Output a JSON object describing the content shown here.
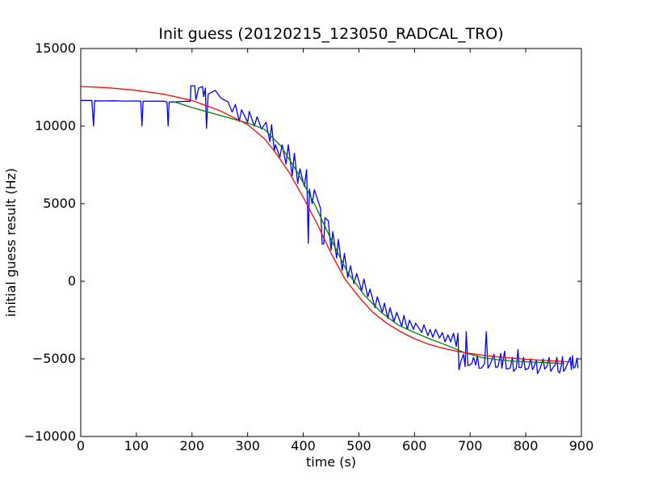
{
  "chart_data": {
    "type": "line",
    "title": "Init guess (20120215_123050_RADCAL_TRO)",
    "xlabel": "time (s)",
    "ylabel": "initial guess result (Hz)",
    "xlim": [
      0,
      900
    ],
    "ylim": [
      -10000,
      15000
    ],
    "x_ticks": [
      0,
      100,
      200,
      300,
      400,
      500,
      600,
      700,
      800,
      900
    ],
    "y_ticks": [
      -10000,
      -5000,
      0,
      5000,
      10000,
      15000
    ],
    "grid": false,
    "legend": "none",
    "series": [
      {
        "color": "#0000ff",
        "points": [
          [
            0,
            11650
          ],
          [
            20,
            11650
          ],
          [
            23,
            10000
          ],
          [
            25,
            11630
          ],
          [
            40,
            11620
          ],
          [
            60,
            11630
          ],
          [
            80,
            11610
          ],
          [
            100,
            11620
          ],
          [
            108,
            11600
          ],
          [
            110,
            10000
          ],
          [
            112,
            11600
          ],
          [
            130,
            11610
          ],
          [
            150,
            11600
          ],
          [
            155,
            11550
          ],
          [
            157,
            10000
          ],
          [
            159,
            11550
          ],
          [
            170,
            11560
          ],
          [
            190,
            11600
          ],
          [
            195,
            11600
          ],
          [
            197,
            11600
          ],
          [
            198,
            12600
          ],
          [
            205,
            12600
          ],
          [
            207,
            11700
          ],
          [
            212,
            12450
          ],
          [
            219,
            12550
          ],
          [
            221,
            11900
          ],
          [
            224,
            12450
          ],
          [
            226,
            9850
          ],
          [
            229,
            12050
          ],
          [
            242,
            12300
          ],
          [
            252,
            11800
          ],
          [
            265,
            11550
          ],
          [
            272,
            10900
          ],
          [
            278,
            11400
          ],
          [
            285,
            10300
          ],
          [
            289,
            11050
          ],
          [
            300,
            10250
          ],
          [
            303,
            10950
          ],
          [
            312,
            10000
          ],
          [
            317,
            10600
          ],
          [
            325,
            9800
          ],
          [
            333,
            10250
          ],
          [
            340,
            9000
          ],
          [
            343,
            10100
          ],
          [
            348,
            8400
          ],
          [
            350,
            8800
          ],
          [
            358,
            8000
          ],
          [
            362,
            8800
          ],
          [
            369,
            7550
          ],
          [
            373,
            8800
          ],
          [
            380,
            6800
          ],
          [
            384,
            8250
          ],
          [
            390,
            6300
          ],
          [
            394,
            7250
          ],
          [
            402,
            6100
          ],
          [
            406,
            7200
          ],
          [
            409,
            2450
          ],
          [
            411,
            5950
          ],
          [
            416,
            5000
          ],
          [
            420,
            5900
          ],
          [
            431,
            4700
          ],
          [
            434,
            2400
          ],
          [
            437,
            2400
          ],
          [
            439,
            4100
          ],
          [
            445,
            3900
          ],
          [
            450,
            2000
          ],
          [
            453,
            3200
          ],
          [
            460,
            1500
          ],
          [
            463,
            2700
          ],
          [
            470,
            700
          ],
          [
            474,
            1800
          ],
          [
            480,
            250
          ],
          [
            485,
            1000
          ],
          [
            491,
            -150
          ],
          [
            496,
            500
          ],
          [
            505,
            -600
          ],
          [
            509,
            150
          ],
          [
            516,
            -1000
          ],
          [
            520,
            -500
          ],
          [
            529,
            -1700
          ],
          [
            533,
            -1000
          ],
          [
            542,
            -2000
          ],
          [
            546,
            -1400
          ],
          [
            552,
            -2400
          ],
          [
            556,
            -1700
          ],
          [
            563,
            -2600
          ],
          [
            568,
            -2000
          ],
          [
            577,
            -2900
          ],
          [
            581,
            -2200
          ],
          [
            587,
            -3100
          ],
          [
            591,
            -2500
          ],
          [
            598,
            -3100
          ],
          [
            602,
            -2700
          ],
          [
            613,
            -3300
          ],
          [
            617,
            -2800
          ],
          [
            624,
            -3500
          ],
          [
            628,
            -3100
          ],
          [
            633,
            -3600
          ],
          [
            638,
            -3100
          ],
          [
            645,
            -3650
          ],
          [
            650,
            -3300
          ],
          [
            655,
            -3900
          ],
          [
            660,
            -3450
          ],
          [
            665,
            -3900
          ],
          [
            670,
            -3350
          ],
          [
            675,
            -4200
          ],
          [
            678,
            -3350
          ],
          [
            680,
            -5700
          ],
          [
            683,
            -5200
          ],
          [
            688,
            -4700
          ],
          [
            691,
            -5500
          ],
          [
            693,
            -3250
          ],
          [
            696,
            -5450
          ],
          [
            703,
            -5300
          ],
          [
            706,
            -4900
          ],
          [
            710,
            -5400
          ],
          [
            713,
            -4800
          ],
          [
            716,
            -5600
          ],
          [
            720,
            -5600
          ],
          [
            726,
            -5300
          ],
          [
            729,
            -3250
          ],
          [
            732,
            -5600
          ],
          [
            736,
            -5350
          ],
          [
            743,
            -4700
          ],
          [
            746,
            -5550
          ],
          [
            750,
            -5500
          ],
          [
            755,
            -4650
          ],
          [
            757,
            -5600
          ],
          [
            762,
            -4500
          ],
          [
            765,
            -5650
          ],
          [
            772,
            -5600
          ],
          [
            776,
            -4900
          ],
          [
            778,
            -5800
          ],
          [
            783,
            -5600
          ],
          [
            786,
            -4400
          ],
          [
            788,
            -5550
          ],
          [
            792,
            -5550
          ],
          [
            796,
            -4900
          ],
          [
            799,
            -5700
          ],
          [
            805,
            -5600
          ],
          [
            809,
            -5000
          ],
          [
            812,
            -5700
          ],
          [
            815,
            -5500
          ],
          [
            819,
            -5100
          ],
          [
            821,
            -5950
          ],
          [
            826,
            -5600
          ],
          [
            831,
            -5000
          ],
          [
            834,
            -5650
          ],
          [
            838,
            -5500
          ],
          [
            842,
            -4900
          ],
          [
            845,
            -5800
          ],
          [
            850,
            -5500
          ],
          [
            853,
            -5400
          ],
          [
            856,
            -4900
          ],
          [
            858,
            -5800
          ],
          [
            861,
            -5900
          ],
          [
            864,
            -5400
          ],
          [
            866,
            -4850
          ],
          [
            868,
            -5800
          ],
          [
            871,
            -5650
          ],
          [
            875,
            -5300
          ],
          [
            880,
            -4900
          ],
          [
            882,
            -5700
          ],
          [
            884,
            -4800
          ],
          [
            886,
            -5600
          ],
          [
            889,
            -5500
          ],
          [
            892,
            -4950
          ],
          [
            894,
            -5600
          ]
        ]
      },
      {
        "color": "#008000",
        "points": [
          [
            165,
            11600
          ],
          [
            200,
            11200
          ],
          [
            250,
            10700
          ],
          [
            300,
            10200
          ],
          [
            330,
            9800
          ],
          [
            360,
            8700
          ],
          [
            390,
            7000
          ],
          [
            420,
            5000
          ],
          [
            450,
            2700
          ],
          [
            480,
            550
          ],
          [
            510,
            -900
          ],
          [
            540,
            -2000
          ],
          [
            570,
            -2800
          ],
          [
            600,
            -3300
          ],
          [
            630,
            -3750
          ],
          [
            660,
            -4150
          ],
          [
            690,
            -4600
          ],
          [
            720,
            -4900
          ],
          [
            750,
            -5050
          ],
          [
            780,
            -5150
          ],
          [
            810,
            -5200
          ],
          [
            840,
            -5250
          ],
          [
            870,
            -5300
          ]
        ]
      },
      {
        "color": "#ff0000",
        "points": [
          [
            0,
            12550
          ],
          [
            50,
            12470
          ],
          [
            100,
            12300
          ],
          [
            150,
            12050
          ],
          [
            200,
            11650
          ],
          [
            250,
            11000
          ],
          [
            300,
            10100
          ],
          [
            330,
            9200
          ],
          [
            350,
            8300
          ],
          [
            375,
            7000
          ],
          [
            400,
            5400
          ],
          [
            425,
            3700
          ],
          [
            450,
            1800
          ],
          [
            475,
            150
          ],
          [
            500,
            -1000
          ],
          [
            525,
            -2000
          ],
          [
            550,
            -2700
          ],
          [
            575,
            -3250
          ],
          [
            600,
            -3700
          ],
          [
            625,
            -4050
          ],
          [
            650,
            -4300
          ],
          [
            675,
            -4500
          ],
          [
            700,
            -4650
          ],
          [
            725,
            -4770
          ],
          [
            750,
            -4870
          ],
          [
            775,
            -4950
          ],
          [
            800,
            -5020
          ],
          [
            825,
            -5080
          ],
          [
            850,
            -5130
          ],
          [
            875,
            -5180
          ],
          [
            880,
            -5190
          ]
        ]
      }
    ]
  }
}
